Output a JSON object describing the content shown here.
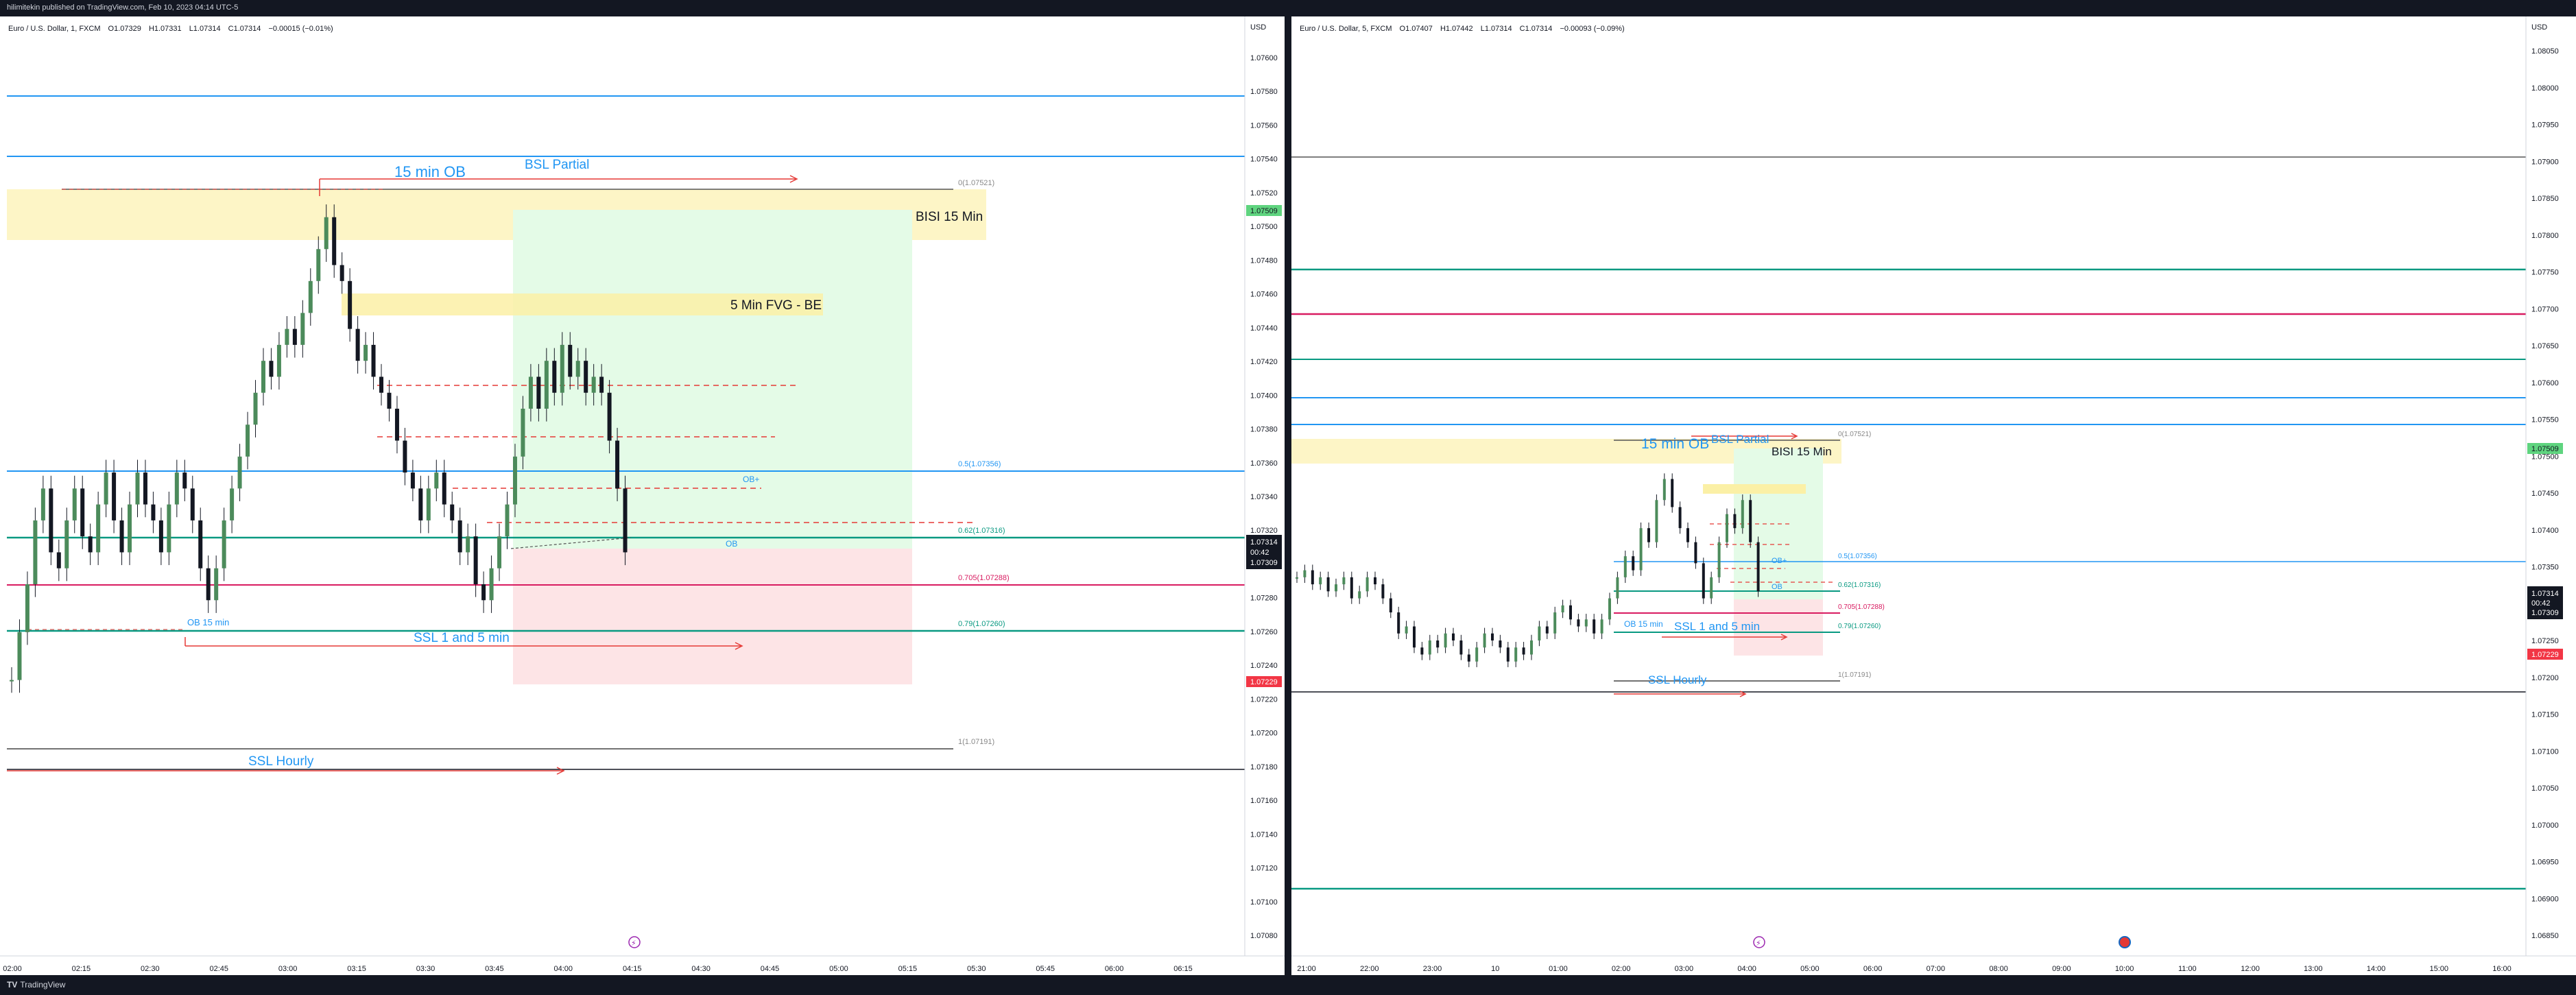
{
  "header": {
    "published": "hilimitekin published on TradingView.com, Feb 10, 2023 04:14 UTC-5"
  },
  "footer": {
    "brand_glyph": "TV",
    "brand_text": "TradingView"
  },
  "colors": {
    "bg_dark": "#131722",
    "blue_line": "#2196f3",
    "green_line": "#089981",
    "red_line": "#d81b60",
    "up_candle": "#4c8b5b",
    "down_candle": "#131722"
  },
  "left_chart": {
    "currency": "USD",
    "symbol": "Euro / U.S. Dollar, 1, FXCM",
    "ohlc": {
      "open": "O1.07329",
      "high": "H1.07331",
      "low": "L1.07314",
      "close": "C1.07314",
      "change": "−0.00015 (−0.01%)"
    },
    "price_ticks": [
      "1.07600",
      "1.07580",
      "1.07560",
      "1.07540",
      "1.07520",
      "1.07500",
      "1.07480",
      "1.07460",
      "1.07440",
      "1.07420",
      "1.07400",
      "1.07380",
      "1.07360",
      "1.07340",
      "1.07320",
      "1.07300",
      "1.07280",
      "1.07260",
      "1.07240",
      "1.07220",
      "1.07200",
      "1.07180",
      "1.07160",
      "1.07140",
      "1.07120",
      "1.07100",
      "1.07080"
    ],
    "time_ticks": [
      "02:00",
      "02:15",
      "02:30",
      "02:45",
      "03:00",
      "03:15",
      "03:30",
      "03:45",
      "04:00",
      "04:15",
      "04:30",
      "04:45",
      "05:00",
      "05:15",
      "05:30",
      "05:45",
      "06:00",
      "06:15"
    ],
    "price_badge_green": "1.07509",
    "price_badge_current": [
      "1.07314",
      "00:42",
      "1.07309"
    ],
    "price_badge_red": "1.07229",
    "labels": {
      "ob15": "15 min OB",
      "bsl_partial": "BSL Partial",
      "bisi15": "BISI 15 Min",
      "fvg5": "5 Min FVG - BE",
      "obplus": "OB+",
      "ob": "OB",
      "ob15_small": "OB 15 min",
      "ssl_1_5": "SSL 1 and 5 min",
      "ssl_hourly": "SSL Hourly"
    },
    "fib": {
      "f0": "0(1.07521)",
      "f05": "0.5(1.07356)",
      "f062": "0.62(1.07316)",
      "f0705": "0.705(1.07288)",
      "f079": "0.79(1.07260)",
      "f1": "1(1.07191)"
    },
    "price_axis_min": 1.0707,
    "price_axis_max": 1.0762,
    "series": {
      "name": "",
      "values": [
        1.0723,
        1.0726,
        1.0729,
        1.0733,
        1.0735,
        1.0731,
        1.073,
        1.0733,
        1.0735,
        1.0732,
        1.0731,
        1.0734,
        1.0736,
        1.0733,
        1.0731,
        1.0734,
        1.0736,
        1.0734,
        1.0733,
        1.0731,
        1.0734,
        1.0736,
        1.0735,
        1.0733,
        1.073,
        1.0728,
        1.073,
        1.0733,
        1.0735,
        1.0737,
        1.0739,
        1.0741,
        1.0743,
        1.0742,
        1.0744,
        1.0745,
        1.0744,
        1.0746,
        1.0748,
        1.075,
        1.0752,
        1.0749,
        1.0748,
        1.0745,
        1.0743,
        1.0744,
        1.0742,
        1.0741,
        1.074,
        1.0738,
        1.0736,
        1.0735,
        1.0733,
        1.0735,
        1.0736,
        1.0734,
        1.0733,
        1.0731,
        1.0732,
        1.0729,
        1.0728,
        1.073,
        1.0732,
        1.0734,
        1.0737,
        1.074,
        1.0742,
        1.074,
        1.0743,
        1.0741,
        1.0744,
        1.0742,
        1.0743,
        1.0741,
        1.0742,
        1.0741,
        1.0738,
        1.0735,
        1.0731
      ]
    }
  },
  "right_chart": {
    "currency": "USD",
    "symbol": "Euro / U.S. Dollar, 5, FXCM",
    "ohlc": {
      "open": "O1.07407",
      "high": "H1.07442",
      "low": "L1.07314",
      "close": "C1.07314",
      "change": "−0.00093 (−0.09%)"
    },
    "price_ticks": [
      "1.08050",
      "1.08000",
      "1.07950",
      "1.07900",
      "1.07850",
      "1.07800",
      "1.07750",
      "1.07700",
      "1.07650",
      "1.07600",
      "1.07550",
      "1.07500",
      "1.07450",
      "1.07400",
      "1.07350",
      "1.07300",
      "1.07250",
      "1.07200",
      "1.07150",
      "1.07100",
      "1.07050",
      "1.07000",
      "1.06950",
      "1.06900",
      "1.06850"
    ],
    "time_ticks": [
      "21:00",
      "22:00",
      "23:00",
      "10",
      "01:00",
      "02:00",
      "03:00",
      "04:00",
      "05:00",
      "06:00",
      "07:00",
      "08:00",
      "09:00",
      "10:00",
      "11:00",
      "12:00",
      "13:00",
      "14:00",
      "15:00",
      "16:00"
    ],
    "price_badge_green": "1.07509",
    "price_badge_current": [
      "1.07314",
      "00:42",
      "1.07309"
    ],
    "price_badge_red": "1.07229",
    "labels": {
      "ob15": "15 min OB",
      "bsl_partial": "BSL Partial",
      "bisi15": "BISI 15 Min",
      "obplus": "OB+",
      "ob": "OB",
      "ob15_small": "OB 15 min",
      "ssl_1_5": "SSL 1 and 5 min",
      "ssl_hourly": "SSL Hourly"
    },
    "fib": {
      "f0": "0(1.07521)",
      "f05": "0.5(1.07356)",
      "f062": "0.62(1.07316)",
      "f0705": "0.705(1.07288)",
      "f079": "0.79(1.07260)",
      "f1": "1(1.07191)"
    },
    "price_axis_min": 1.0682,
    "price_axis_max": 1.0808,
    "series": {
      "name": "",
      "values": [
        1.0733,
        1.0734,
        1.0732,
        1.0733,
        1.0731,
        1.0732,
        1.0733,
        1.073,
        1.0731,
        1.0733,
        1.0732,
        1.073,
        1.0728,
        1.0725,
        1.0726,
        1.0723,
        1.0722,
        1.0724,
        1.0723,
        1.0725,
        1.0724,
        1.0722,
        1.0721,
        1.0723,
        1.0725,
        1.0724,
        1.0723,
        1.0721,
        1.0723,
        1.0722,
        1.0724,
        1.0726,
        1.0725,
        1.0728,
        1.0729,
        1.0727,
        1.0726,
        1.0727,
        1.0725,
        1.0727,
        1.073,
        1.0733,
        1.0736,
        1.0734,
        1.074,
        1.0738,
        1.0744,
        1.0747,
        1.0743,
        1.074,
        1.0738,
        1.0735,
        1.073,
        1.0733,
        1.0738,
        1.0742,
        1.074,
        1.0744,
        1.0738,
        1.0731
      ]
    }
  }
}
